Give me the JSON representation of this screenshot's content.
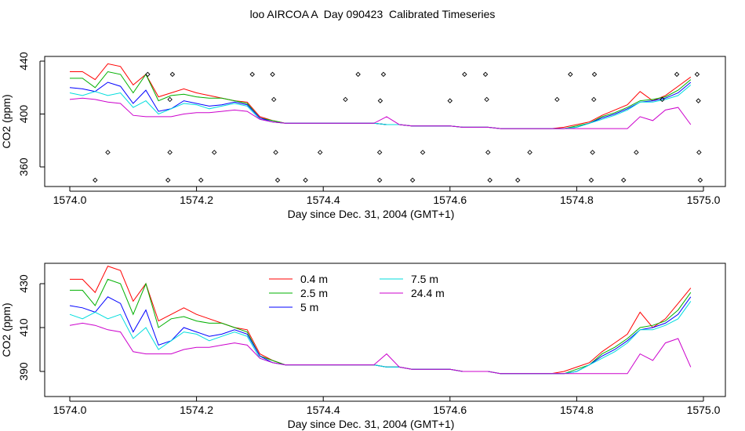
{
  "title": "loo AIRCOA A  Day 090423  Calibrated Timeseries",
  "colors": {
    "0.4 m": "#ff0000",
    "2.5 m": "#00b000",
    "5 m": "#0000ff",
    "7.5 m": "#00dddd",
    "24.4 m": "#cc00cc",
    "axis": "#000000"
  },
  "chart_data": [
    {
      "type": "line+scatter",
      "xlabel": "Day since Dec. 31, 2004 (GMT+1)",
      "ylabel": "CO2 (ppm)",
      "xlim": [
        1574.0,
        1575.0
      ],
      "ylim": [
        345,
        445
      ],
      "xticks": [
        1574.0,
        1574.2,
        1574.4,
        1574.6,
        1574.8,
        1575.0
      ],
      "xtick_labels": [
        "1574.0",
        "1574.2",
        "1574.4",
        "1574.6",
        "1574.8",
        "1575.0"
      ],
      "yticks": [
        360,
        400,
        440
      ],
      "ytick_labels": [
        "360",
        "400",
        "440"
      ],
      "grid": false,
      "scatter_points": [
        [
          1574.04,
          350
        ],
        [
          1574.06,
          371
        ],
        [
          1574.123,
          430
        ],
        [
          1574.155,
          350
        ],
        [
          1574.158,
          371
        ],
        [
          1574.158,
          411
        ],
        [
          1574.162,
          430
        ],
        [
          1574.207,
          350
        ],
        [
          1574.228,
          371
        ],
        [
          1574.288,
          430
        ],
        [
          1574.32,
          430
        ],
        [
          1574.322,
          411
        ],
        [
          1574.325,
          371
        ],
        [
          1574.328,
          350
        ],
        [
          1574.372,
          350
        ],
        [
          1574.395,
          371
        ],
        [
          1574.435,
          411
        ],
        [
          1574.455,
          430
        ],
        [
          1574.489,
          371
        ],
        [
          1574.489,
          350
        ],
        [
          1574.49,
          410
        ],
        [
          1574.495,
          430
        ],
        [
          1574.541,
          350
        ],
        [
          1574.557,
          371
        ],
        [
          1574.6,
          410
        ],
        [
          1574.623,
          430
        ],
        [
          1574.656,
          430
        ],
        [
          1574.658,
          411
        ],
        [
          1574.66,
          371
        ],
        [
          1574.663,
          350
        ],
        [
          1574.707,
          350
        ],
        [
          1574.726,
          371
        ],
        [
          1574.769,
          411
        ],
        [
          1574.79,
          430
        ],
        [
          1574.823,
          350
        ],
        [
          1574.825,
          371
        ],
        [
          1574.827,
          411
        ],
        [
          1574.828,
          430
        ],
        [
          1574.874,
          350
        ],
        [
          1574.894,
          371
        ],
        [
          1574.935,
          411
        ],
        [
          1574.958,
          430
        ],
        [
          1574.99,
          430
        ],
        [
          1574.992,
          410
        ],
        [
          1574.993,
          371
        ],
        [
          1574.995,
          350
        ]
      ]
    },
    {
      "type": "line",
      "xlabel": "Day since Dec. 31, 2004 (GMT+1)",
      "ylabel": "CO2 (ppm)",
      "xlim": [
        1574.0,
        1575.0
      ],
      "ylim": [
        382,
        438
      ],
      "xticks": [
        1574.0,
        1574.2,
        1574.4,
        1574.6,
        1574.8,
        1575.0
      ],
      "xtick_labels": [
        "1574.0",
        "1574.2",
        "1574.4",
        "1574.6",
        "1574.8",
        "1575.0"
      ],
      "yticks": [
        390,
        410,
        430
      ],
      "ytick_labels": [
        "390",
        "410",
        "430"
      ],
      "grid": false,
      "legend": "top-center",
      "x": [
        1574.0,
        1574.02,
        1574.04,
        1574.06,
        1574.08,
        1574.1,
        1574.12,
        1574.14,
        1574.16,
        1574.18,
        1574.2,
        1574.22,
        1574.24,
        1574.26,
        1574.28,
        1574.3,
        1574.32,
        1574.34,
        1574.36,
        1574.38,
        1574.4,
        1574.42,
        1574.44,
        1574.46,
        1574.48,
        1574.5,
        1574.52,
        1574.54,
        1574.56,
        1574.58,
        1574.6,
        1574.62,
        1574.64,
        1574.66,
        1574.68,
        1574.7,
        1574.72,
        1574.74,
        1574.76,
        1574.78,
        1574.8,
        1574.82,
        1574.84,
        1574.86,
        1574.88,
        1574.9,
        1574.92,
        1574.94,
        1574.96,
        1574.98
      ],
      "series": [
        {
          "name": "0.4 m",
          "values": [
            432,
            432,
            426,
            438,
            436,
            422,
            430,
            413,
            416,
            419,
            416,
            414,
            412,
            410,
            409,
            398,
            395,
            393,
            393,
            393,
            393,
            393,
            393,
            393,
            393,
            392,
            392,
            391,
            391,
            391,
            391,
            390,
            390,
            390,
            389,
            389,
            389,
            389,
            389,
            390,
            392,
            394,
            399,
            403,
            407,
            417,
            410,
            414,
            421,
            428
          ]
        },
        {
          "name": "2.5 m",
          "values": [
            427,
            427,
            420,
            432,
            430,
            416,
            430,
            410,
            414,
            415,
            413,
            412,
            412,
            410,
            408,
            397,
            395,
            393,
            393,
            393,
            393,
            393,
            393,
            393,
            393,
            392,
            392,
            391,
            391,
            391,
            391,
            390,
            390,
            390,
            389,
            389,
            389,
            389,
            389,
            389,
            391,
            393,
            398,
            401,
            405,
            410,
            411,
            413,
            418,
            426
          ]
        },
        {
          "name": "5 m",
          "values": [
            420,
            419,
            417,
            424,
            421,
            408,
            418,
            402,
            404,
            410,
            408,
            406,
            407,
            409,
            407,
            397,
            394,
            393,
            393,
            393,
            393,
            393,
            393,
            393,
            393,
            392,
            392,
            391,
            391,
            391,
            391,
            390,
            390,
            390,
            389,
            389,
            389,
            389,
            389,
            389,
            390,
            393,
            397,
            400,
            404,
            409,
            410,
            412,
            416,
            424
          ]
        },
        {
          "name": "7.5 m",
          "values": [
            416,
            414,
            417,
            414,
            416,
            405,
            410,
            400,
            404,
            408,
            407,
            404,
            406,
            408,
            406,
            396,
            394,
            393,
            393,
            393,
            393,
            393,
            393,
            393,
            393,
            392,
            392,
            391,
            391,
            391,
            391,
            390,
            390,
            390,
            389,
            389,
            389,
            389,
            389,
            389,
            390,
            393,
            396,
            399,
            403,
            409,
            409,
            411,
            414,
            422
          ]
        },
        {
          "name": "24.4 m",
          "values": [
            411,
            412,
            411,
            409,
            408,
            399,
            398,
            398,
            398,
            400,
            401,
            401,
            402,
            403,
            402,
            396,
            394,
            393,
            393,
            393,
            393,
            393,
            393,
            393,
            393,
            398,
            392,
            391,
            391,
            391,
            391,
            390,
            390,
            390,
            389,
            389,
            389,
            389,
            389,
            389,
            389,
            389,
            389,
            389,
            389,
            398,
            395,
            403,
            405,
            392
          ]
        }
      ]
    }
  ]
}
